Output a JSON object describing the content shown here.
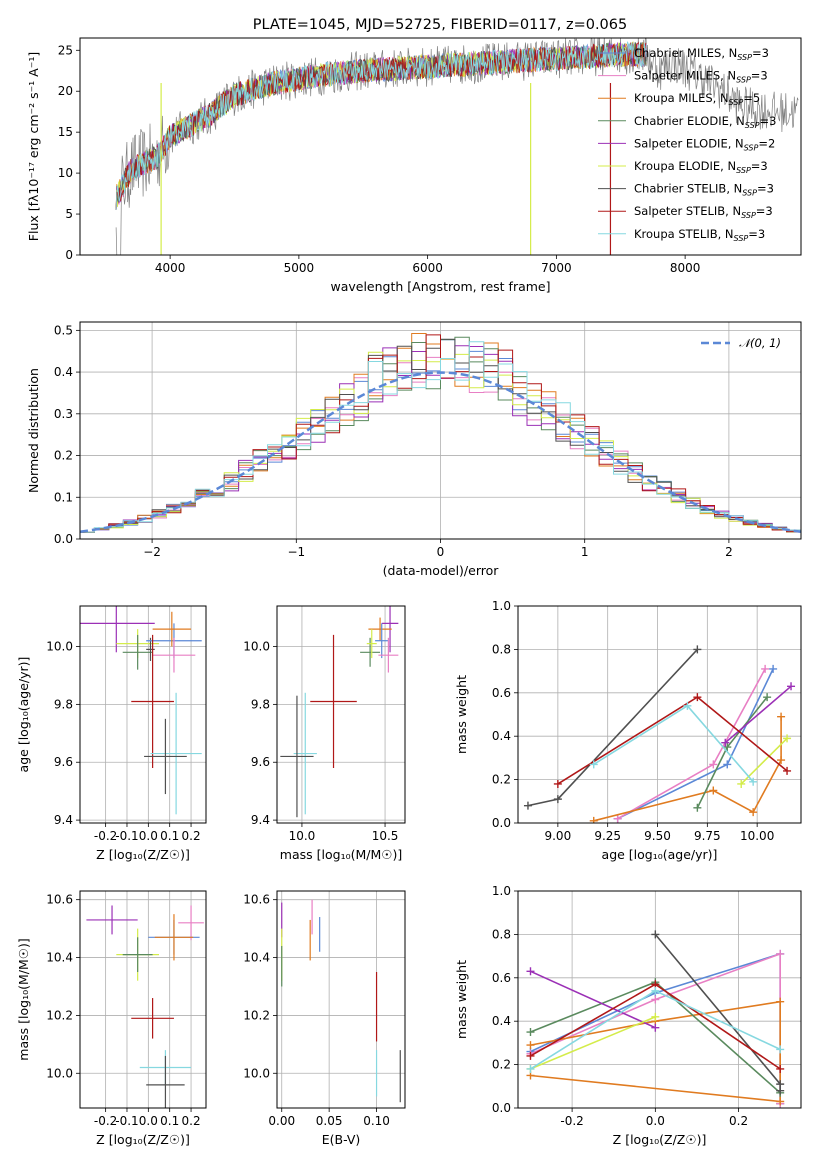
{
  "title": "PLATE=1045, MJD=52725, FIBERID=0117, z=0.065",
  "colors": {
    "Chabrier MILES": "#5b88d6",
    "Salpeter MILES": "#e87fc4",
    "Kroupa MILES": "#e07b20",
    "Chabrier ELODIE": "#5a8a5e",
    "Salpeter ELODIE": "#9b30b6",
    "Kroupa ELODIE": "#d4ec4a",
    "Chabrier STELIB": "#505050",
    "Salpeter STELIB": "#b01818",
    "Kroupa STELIB": "#86d8e0"
  },
  "chart_data": [
    {
      "id": "spectrum",
      "type": "line",
      "xlabel": "wavelength [Angstrom, rest frame]",
      "ylabel": "Flux [fλ10⁻¹⁷ erg cm⁻² s⁻¹ A⁻¹]",
      "xlim": [
        3300,
        8900
      ],
      "ylim": [
        0,
        26.5
      ],
      "xticks": [
        4000,
        5000,
        6000,
        7000,
        8000
      ],
      "yticks": [
        0,
        5,
        10,
        15,
        20,
        25
      ],
      "legend_position": "right",
      "legend": [
        {
          "model": "Chabrier MILES",
          "nssp": "3"
        },
        {
          "model": "Salpeter MILES",
          "nssp": "3"
        },
        {
          "model": "Kroupa MILES",
          "nssp": "5"
        },
        {
          "model": "Chabrier ELODIE",
          "nssp": "3"
        },
        {
          "model": "Salpeter ELODIE",
          "nssp": "2"
        },
        {
          "model": "Kroupa ELODIE",
          "nssp": "3"
        },
        {
          "model": "Chabrier STELIB",
          "nssp": "3"
        },
        {
          "model": "Salpeter STELIB",
          "nssp": "3"
        },
        {
          "model": "Kroupa STELIB",
          "nssp": "3"
        }
      ],
      "continuum": [
        [
          3580,
          7.0
        ],
        [
          3700,
          10.5
        ],
        [
          3900,
          12.0
        ],
        [
          4000,
          14.5
        ],
        [
          4300,
          17.0
        ],
        [
          4500,
          19.5
        ],
        [
          4800,
          21.0
        ],
        [
          5000,
          21.5
        ],
        [
          5200,
          22.0
        ],
        [
          5500,
          22.5
        ],
        [
          6000,
          23.0
        ],
        [
          6500,
          23.5
        ],
        [
          7000,
          24.0
        ],
        [
          7500,
          24.5
        ],
        [
          7700,
          24.5
        ],
        [
          7800,
          22.5
        ],
        [
          7900,
          23.5
        ],
        [
          8100,
          22.0
        ],
        [
          8200,
          21.0
        ],
        [
          8300,
          20.0
        ],
        [
          8400,
          18.5
        ],
        [
          8500,
          18.0
        ],
        [
          8700,
          17.5
        ],
        [
          8900,
          17.5
        ]
      ],
      "model_end": 7700
    },
    {
      "id": "residuals",
      "type": "line",
      "xlabel": "(data-model)/error",
      "ylabel": "Normed distribution",
      "xlim": [
        -2.5,
        2.5
      ],
      "ylim": [
        0,
        0.52
      ],
      "xticks": [
        -2,
        -1,
        0,
        1,
        2
      ],
      "yticks": [
        0.0,
        0.1,
        0.2,
        0.3,
        0.4,
        0.5
      ],
      "grid": true,
      "legend": "𝒩(0, 1)",
      "legend_position": "top-right",
      "gaussian": {
        "mu": 0,
        "sigma": 1,
        "color": "#5b88d6"
      }
    },
    {
      "id": "age_vs_Z",
      "type": "scatter",
      "xlabel": "Z [log₁₀(Z/Z☉)]",
      "ylabel": "age  [log₁₀(age/yr)]",
      "xlim": [
        -0.32,
        0.27
      ],
      "ylim": [
        9.39,
        10.14
      ],
      "xticks": [
        -0.2,
        -0.1,
        0.0,
        0.1,
        0.2
      ],
      "yticks": [
        9.4,
        9.6,
        9.8,
        10.0
      ],
      "grid": true,
      "points": [
        {
          "model": "Salpeter ELODIE",
          "x": -0.15,
          "y": 10.08,
          "xerr": 0.18,
          "yerr": 0.1
        },
        {
          "model": "Kroupa ELODIE",
          "x": -0.05,
          "y": 10.01,
          "xerr": 0.1,
          "yerr": 0.05
        },
        {
          "model": "Chabrier ELODIE",
          "x": -0.05,
          "y": 9.98,
          "xerr": 0.07,
          "yerr": 0.06
        },
        {
          "model": "Chabrier STELIB",
          "x": 0.01,
          "y": 9.99,
          "xerr": 0.02,
          "yerr": 0.04
        },
        {
          "model": "Chabrier MILES",
          "x": 0.12,
          "y": 10.02,
          "xerr": 0.13,
          "yerr": 0.06
        },
        {
          "model": "Salpeter MILES",
          "x": 0.12,
          "y": 9.97,
          "xerr": 0.1,
          "yerr": 0.06
        },
        {
          "model": "Kroupa MILES",
          "x": 0.11,
          "y": 10.06,
          "xerr": 0.09,
          "yerr": 0.06
        },
        {
          "model": "Salpeter STELIB",
          "x": 0.02,
          "y": 9.81,
          "xerr": 0.1,
          "yerr": 0.23
        },
        {
          "model": "Kroupa STELIB",
          "x": 0.13,
          "y": 9.63,
          "xerr": 0.12,
          "yerr": 0.21
        },
        {
          "model": "Chabrier STELIB",
          "x": 0.08,
          "y": 9.62,
          "xerr": 0.1,
          "yerr": 0.13
        }
      ]
    },
    {
      "id": "age_vs_mass",
      "type": "scatter",
      "xlabel": "mass [log₁₀(M/M☉)]",
      "ylabel": "",
      "xlim": [
        9.85,
        10.62
      ],
      "ylim": [
        9.39,
        10.14
      ],
      "xticks": [
        10.0,
        10.5
      ],
      "yticks": [
        9.4,
        9.6,
        9.8,
        10.0
      ],
      "grid": true,
      "points": [
        {
          "model": "Salpeter ELODIE",
          "x": 10.53,
          "y": 10.08,
          "xerr": 0.05,
          "yerr": 0.1
        },
        {
          "model": "Kroupa MILES",
          "x": 10.47,
          "y": 10.06,
          "xerr": 0.07,
          "yerr": 0.04
        },
        {
          "model": "Chabrier MILES",
          "x": 10.48,
          "y": 10.02,
          "xerr": 0.04,
          "yerr": 0.06
        },
        {
          "model": "Salpeter MILES",
          "x": 10.52,
          "y": 9.97,
          "xerr": 0.06,
          "yerr": 0.06
        },
        {
          "model": "Chabrier ELODIE",
          "x": 10.41,
          "y": 9.98,
          "xerr": 0.06,
          "yerr": 0.05
        },
        {
          "model": "Kroupa ELODIE",
          "x": 10.42,
          "y": 10.01,
          "xerr": 0.03,
          "yerr": 0.05
        },
        {
          "model": "Salpeter STELIB",
          "x": 10.19,
          "y": 9.81,
          "xerr": 0.14,
          "yerr": 0.23
        },
        {
          "model": "Kroupa STELIB",
          "x": 10.02,
          "y": 9.63,
          "xerr": 0.07,
          "yerr": 0.21
        },
        {
          "model": "Chabrier STELIB",
          "x": 9.97,
          "y": 9.62,
          "xerr": 0.1,
          "yerr": 0.21
        }
      ]
    },
    {
      "id": "mass_weight_vs_age",
      "type": "line",
      "xlabel": "age  [log₁₀(age/yr)]",
      "ylabel": "mass weight",
      "xlim": [
        8.8,
        10.22
      ],
      "ylim": [
        0,
        1.0
      ],
      "xticks": [
        9.0,
        9.25,
        9.5,
        9.75,
        10.0
      ],
      "yticks": [
        0.0,
        0.2,
        0.4,
        0.6,
        0.8,
        1.0
      ],
      "grid": true,
      "series": [
        {
          "model": "Chabrier MILES",
          "points": [
            [
              9.3,
              0.02
            ],
            [
              9.85,
              0.27
            ],
            [
              10.08,
              0.71
            ]
          ]
        },
        {
          "model": "Salpeter MILES",
          "points": [
            [
              9.3,
              0.02
            ],
            [
              9.78,
              0.27
            ],
            [
              10.04,
              0.71
            ]
          ]
        },
        {
          "model": "Kroupa MILES",
          "points": [
            [
              9.18,
              0.01
            ],
            [
              9.78,
              0.15
            ],
            [
              9.98,
              0.05
            ],
            [
              10.12,
              0.29
            ],
            [
              10.12,
              0.49
            ]
          ]
        },
        {
          "model": "Chabrier ELODIE",
          "points": [
            [
              9.7,
              0.07
            ],
            [
              9.85,
              0.35
            ],
            [
              10.05,
              0.58
            ]
          ]
        },
        {
          "model": "Salpeter ELODIE",
          "points": [
            [
              9.84,
              0.37
            ],
            [
              10.17,
              0.63
            ]
          ]
        },
        {
          "model": "Kroupa ELODIE",
          "points": [
            [
              9.92,
              0.18
            ],
            [
              10.15,
              0.39
            ]
          ]
        },
        {
          "model": "Chabrier STELIB",
          "points": [
            [
              8.85,
              0.08
            ],
            [
              9.0,
              0.11
            ],
            [
              9.7,
              0.8
            ]
          ]
        },
        {
          "model": "Salpeter STELIB",
          "points": [
            [
              9.0,
              0.18
            ],
            [
              9.7,
              0.58
            ],
            [
              10.15,
              0.24
            ]
          ]
        },
        {
          "model": "Kroupa STELIB",
          "points": [
            [
              9.18,
              0.27
            ],
            [
              9.65,
              0.54
            ],
            [
              9.98,
              0.19
            ]
          ]
        }
      ]
    },
    {
      "id": "mass_vs_Z",
      "type": "scatter",
      "xlabel": "Z [log₁₀(Z/Z☉)]",
      "ylabel": "mass [log₁₀(M/M☉)]",
      "xlim": [
        -0.32,
        0.27
      ],
      "ylim": [
        9.88,
        10.63
      ],
      "xticks": [
        -0.2,
        -0.1,
        0.0,
        0.1,
        0.2
      ],
      "yticks": [
        10.0,
        10.2,
        10.4,
        10.6
      ],
      "grid": true,
      "points": [
        {
          "model": "Salpeter ELODIE",
          "x": -0.17,
          "y": 10.53,
          "xerr": 0.12,
          "yerr": 0.05
        },
        {
          "model": "Salpeter MILES",
          "x": 0.2,
          "y": 10.52,
          "xerr": 0.06,
          "yerr": 0.06
        },
        {
          "model": "Chabrier MILES",
          "x": 0.12,
          "y": 10.47,
          "xerr": 0.12,
          "yerr": 0.06
        },
        {
          "model": "Kroupa MILES",
          "x": 0.12,
          "y": 10.47,
          "xerr": 0.09,
          "yerr": 0.08
        },
        {
          "model": "Kroupa ELODIE",
          "x": -0.05,
          "y": 10.41,
          "xerr": 0.1,
          "yerr": 0.09
        },
        {
          "model": "Chabrier ELODIE",
          "x": -0.05,
          "y": 10.41,
          "xerr": 0.07,
          "yerr": 0.06
        },
        {
          "model": "Salpeter STELIB",
          "x": 0.02,
          "y": 10.19,
          "xerr": 0.1,
          "yerr": 0.07
        },
        {
          "model": "Kroupa STELIB",
          "x": 0.08,
          "y": 10.02,
          "xerr": 0.12,
          "yerr": 0.06
        },
        {
          "model": "Chabrier STELIB",
          "x": 0.08,
          "y": 9.96,
          "xerr": 0.09,
          "yerr": 0.1
        }
      ]
    },
    {
      "id": "mass_vs_ebv",
      "type": "scatter",
      "xlabel": "E(B-V)",
      "ylabel": "",
      "xlim": [
        -0.005,
        0.13
      ],
      "ylim": [
        9.88,
        10.63
      ],
      "xticks": [
        0.0,
        0.05,
        0.1
      ],
      "yticks": [
        10.0,
        10.2,
        10.4,
        10.6
      ],
      "grid": true,
      "points": [
        {
          "model": "Salpeter ELODIE",
          "x": 0.0,
          "y": 10.53,
          "xerr": 0,
          "yerr": 0.06
        },
        {
          "model": "Kroupa ELODIE",
          "x": 0.0,
          "y": 10.41,
          "xerr": 0,
          "yerr": 0.09
        },
        {
          "model": "Chabrier ELODIE",
          "x": 0.0,
          "y": 10.37,
          "xerr": 0,
          "yerr": 0.07
        },
        {
          "model": "Salpeter MILES",
          "x": 0.032,
          "y": 10.54,
          "xerr": 0,
          "yerr": 0.06
        },
        {
          "model": "Kroupa MILES",
          "x": 0.03,
          "y": 10.46,
          "xerr": 0,
          "yerr": 0.07
        },
        {
          "model": "Chabrier MILES",
          "x": 0.04,
          "y": 10.48,
          "xerr": 0,
          "yerr": 0.06
        },
        {
          "model": "Salpeter STELIB",
          "x": 0.1,
          "y": 10.23,
          "xerr": 0,
          "yerr": 0.12
        },
        {
          "model": "Kroupa STELIB",
          "x": 0.1,
          "y": 10.0,
          "xerr": 0,
          "yerr": 0.08
        },
        {
          "model": "Chabrier STELIB",
          "x": 0.125,
          "y": 9.99,
          "xerr": 0,
          "yerr": 0.09
        }
      ]
    },
    {
      "id": "mass_weight_vs_Z",
      "type": "line",
      "xlabel": "Z [log₁₀(Z/Z☉)]",
      "ylabel": "mass weight",
      "xlim": [
        -0.33,
        0.35
      ],
      "ylim": [
        0,
        1.0
      ],
      "xticks": [
        -0.2,
        0.0,
        0.2
      ],
      "yticks": [
        0.0,
        0.2,
        0.4,
        0.6,
        0.8,
        1.0
      ],
      "grid": true,
      "series": [
        {
          "model": "Chabrier MILES",
          "points": [
            [
              -0.3,
              0.26
            ],
            [
              0.0,
              0.53
            ],
            [
              0.3,
              0.71
            ],
            [
              0.3,
              0.02
            ]
          ]
        },
        {
          "model": "Salpeter MILES",
          "points": [
            [
              -0.3,
              0.25
            ],
            [
              0.0,
              0.5
            ],
            [
              0.3,
              0.71
            ],
            [
              0.3,
              0.02
            ]
          ]
        },
        {
          "model": "Kroupa MILES",
          "points": [
            [
              -0.3,
              0.29
            ],
            [
              0.0,
              0.4
            ],
            [
              0.3,
              0.49
            ],
            [
              0.3,
              0.03
            ],
            [
              -0.3,
              0.15
            ]
          ]
        },
        {
          "model": "Chabrier ELODIE",
          "points": [
            [
              -0.3,
              0.35
            ],
            [
              0.0,
              0.58
            ],
            [
              0.3,
              0.07
            ]
          ]
        },
        {
          "model": "Salpeter ELODIE",
          "points": [
            [
              -0.3,
              0.63
            ],
            [
              0.0,
              0.37
            ]
          ]
        },
        {
          "model": "Kroupa ELODIE",
          "points": [
            [
              -0.3,
              0.18
            ],
            [
              0.0,
              0.42
            ]
          ]
        },
        {
          "model": "Chabrier STELIB",
          "points": [
            [
              0.0,
              0.8
            ],
            [
              0.3,
              0.11
            ],
            [
              0.3,
              0.08
            ]
          ]
        },
        {
          "model": "Salpeter STELIB",
          "points": [
            [
              -0.3,
              0.24
            ],
            [
              0.0,
              0.57
            ],
            [
              0.3,
              0.18
            ]
          ]
        },
        {
          "model": "Kroupa STELIB",
          "points": [
            [
              -0.3,
              0.18
            ],
            [
              0.0,
              0.54
            ],
            [
              0.3,
              0.27
            ]
          ]
        }
      ]
    }
  ]
}
